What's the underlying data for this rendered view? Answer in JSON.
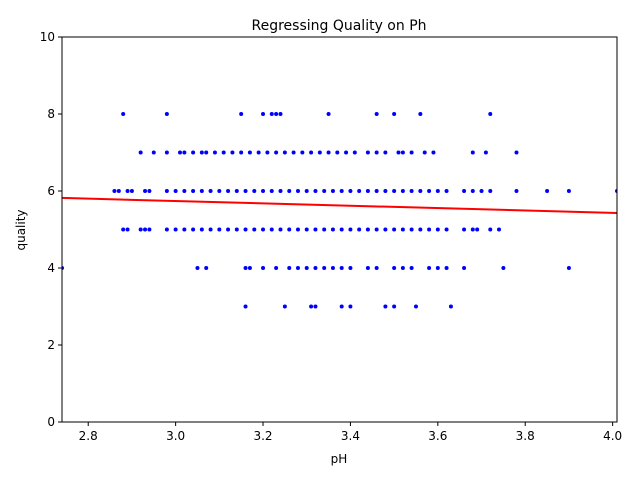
{
  "chart_data": {
    "type": "scatter",
    "title": "Regressing Quality on Ph",
    "xlabel": "pH",
    "ylabel": "quality",
    "xlim": [
      2.74,
      4.01
    ],
    "ylim": [
      0,
      10
    ],
    "xticks": [
      2.8,
      3.0,
      3.2,
      3.4,
      3.6,
      3.8,
      4.0
    ],
    "xtick_labels": [
      "2.8",
      "3.0",
      "3.2",
      "3.4",
      "3.6",
      "3.8",
      "4.0"
    ],
    "yticks": [
      0,
      2,
      4,
      6,
      8,
      10
    ],
    "ytick_labels": [
      "0",
      "2",
      "4",
      "6",
      "8",
      "10"
    ],
    "grid": false,
    "colors": {
      "points": "#0000ff",
      "regression_line": "#ff0000",
      "axes": "#000000"
    },
    "series": [
      {
        "type": "scatter",
        "points": [
          {
            "x": 2.74,
            "y": 4
          },
          {
            "x": 2.88,
            "y": 8
          },
          {
            "x": 2.98,
            "y": 8
          },
          {
            "x": 3.15,
            "y": 8
          },
          {
            "x": 3.2,
            "y": 8
          },
          {
            "x": 3.22,
            "y": 8
          },
          {
            "x": 3.23,
            "y": 8
          },
          {
            "x": 3.24,
            "y": 8
          },
          {
            "x": 3.35,
            "y": 8
          },
          {
            "x": 3.46,
            "y": 8
          },
          {
            "x": 3.5,
            "y": 8
          },
          {
            "x": 3.56,
            "y": 8
          },
          {
            "x": 3.72,
            "y": 8
          },
          {
            "x": 2.92,
            "y": 7
          },
          {
            "x": 2.95,
            "y": 7
          },
          {
            "x": 2.98,
            "y": 7
          },
          {
            "x": 3.01,
            "y": 7
          },
          {
            "x": 3.02,
            "y": 7
          },
          {
            "x": 3.04,
            "y": 7
          },
          {
            "x": 3.06,
            "y": 7
          },
          {
            "x": 3.07,
            "y": 7
          },
          {
            "x": 3.09,
            "y": 7
          },
          {
            "x": 3.11,
            "y": 7
          },
          {
            "x": 3.13,
            "y": 7
          },
          {
            "x": 3.15,
            "y": 7
          },
          {
            "x": 3.17,
            "y": 7
          },
          {
            "x": 3.19,
            "y": 7
          },
          {
            "x": 3.21,
            "y": 7
          },
          {
            "x": 3.23,
            "y": 7
          },
          {
            "x": 3.25,
            "y": 7
          },
          {
            "x": 3.27,
            "y": 7
          },
          {
            "x": 3.29,
            "y": 7
          },
          {
            "x": 3.31,
            "y": 7
          },
          {
            "x": 3.33,
            "y": 7
          },
          {
            "x": 3.35,
            "y": 7
          },
          {
            "x": 3.37,
            "y": 7
          },
          {
            "x": 3.39,
            "y": 7
          },
          {
            "x": 3.41,
            "y": 7
          },
          {
            "x": 3.44,
            "y": 7
          },
          {
            "x": 3.46,
            "y": 7
          },
          {
            "x": 3.48,
            "y": 7
          },
          {
            "x": 3.51,
            "y": 7
          },
          {
            "x": 3.52,
            "y": 7
          },
          {
            "x": 3.54,
            "y": 7
          },
          {
            "x": 3.57,
            "y": 7
          },
          {
            "x": 3.59,
            "y": 7
          },
          {
            "x": 3.68,
            "y": 7
          },
          {
            "x": 3.71,
            "y": 7
          },
          {
            "x": 3.78,
            "y": 7
          },
          {
            "x": 2.86,
            "y": 6
          },
          {
            "x": 2.87,
            "y": 6
          },
          {
            "x": 2.89,
            "y": 6
          },
          {
            "x": 2.9,
            "y": 6
          },
          {
            "x": 2.93,
            "y": 6
          },
          {
            "x": 2.94,
            "y": 6
          },
          {
            "x": 2.98,
            "y": 6
          },
          {
            "x": 3.0,
            "y": 6
          },
          {
            "x": 3.02,
            "y": 6
          },
          {
            "x": 3.04,
            "y": 6
          },
          {
            "x": 3.06,
            "y": 6
          },
          {
            "x": 3.08,
            "y": 6
          },
          {
            "x": 3.1,
            "y": 6
          },
          {
            "x": 3.12,
            "y": 6
          },
          {
            "x": 3.14,
            "y": 6
          },
          {
            "x": 3.16,
            "y": 6
          },
          {
            "x": 3.18,
            "y": 6
          },
          {
            "x": 3.2,
            "y": 6
          },
          {
            "x": 3.22,
            "y": 6
          },
          {
            "x": 3.24,
            "y": 6
          },
          {
            "x": 3.26,
            "y": 6
          },
          {
            "x": 3.28,
            "y": 6
          },
          {
            "x": 3.3,
            "y": 6
          },
          {
            "x": 3.32,
            "y": 6
          },
          {
            "x": 3.34,
            "y": 6
          },
          {
            "x": 3.36,
            "y": 6
          },
          {
            "x": 3.38,
            "y": 6
          },
          {
            "x": 3.4,
            "y": 6
          },
          {
            "x": 3.42,
            "y": 6
          },
          {
            "x": 3.44,
            "y": 6
          },
          {
            "x": 3.46,
            "y": 6
          },
          {
            "x": 3.48,
            "y": 6
          },
          {
            "x": 3.5,
            "y": 6
          },
          {
            "x": 3.52,
            "y": 6
          },
          {
            "x": 3.54,
            "y": 6
          },
          {
            "x": 3.56,
            "y": 6
          },
          {
            "x": 3.58,
            "y": 6
          },
          {
            "x": 3.6,
            "y": 6
          },
          {
            "x": 3.62,
            "y": 6
          },
          {
            "x": 3.66,
            "y": 6
          },
          {
            "x": 3.68,
            "y": 6
          },
          {
            "x": 3.7,
            "y": 6
          },
          {
            "x": 3.72,
            "y": 6
          },
          {
            "x": 3.78,
            "y": 6
          },
          {
            "x": 3.85,
            "y": 6
          },
          {
            "x": 3.9,
            "y": 6
          },
          {
            "x": 4.01,
            "y": 6
          },
          {
            "x": 2.88,
            "y": 5
          },
          {
            "x": 2.89,
            "y": 5
          },
          {
            "x": 2.92,
            "y": 5
          },
          {
            "x": 2.93,
            "y": 5
          },
          {
            "x": 2.94,
            "y": 5
          },
          {
            "x": 2.98,
            "y": 5
          },
          {
            "x": 3.0,
            "y": 5
          },
          {
            "x": 3.02,
            "y": 5
          },
          {
            "x": 3.04,
            "y": 5
          },
          {
            "x": 3.06,
            "y": 5
          },
          {
            "x": 3.08,
            "y": 5
          },
          {
            "x": 3.1,
            "y": 5
          },
          {
            "x": 3.12,
            "y": 5
          },
          {
            "x": 3.14,
            "y": 5
          },
          {
            "x": 3.16,
            "y": 5
          },
          {
            "x": 3.18,
            "y": 5
          },
          {
            "x": 3.2,
            "y": 5
          },
          {
            "x": 3.22,
            "y": 5
          },
          {
            "x": 3.24,
            "y": 5
          },
          {
            "x": 3.26,
            "y": 5
          },
          {
            "x": 3.28,
            "y": 5
          },
          {
            "x": 3.3,
            "y": 5
          },
          {
            "x": 3.32,
            "y": 5
          },
          {
            "x": 3.34,
            "y": 5
          },
          {
            "x": 3.36,
            "y": 5
          },
          {
            "x": 3.38,
            "y": 5
          },
          {
            "x": 3.4,
            "y": 5
          },
          {
            "x": 3.42,
            "y": 5
          },
          {
            "x": 3.44,
            "y": 5
          },
          {
            "x": 3.46,
            "y": 5
          },
          {
            "x": 3.48,
            "y": 5
          },
          {
            "x": 3.5,
            "y": 5
          },
          {
            "x": 3.52,
            "y": 5
          },
          {
            "x": 3.54,
            "y": 5
          },
          {
            "x": 3.56,
            "y": 5
          },
          {
            "x": 3.58,
            "y": 5
          },
          {
            "x": 3.6,
            "y": 5
          },
          {
            "x": 3.62,
            "y": 5
          },
          {
            "x": 3.66,
            "y": 5
          },
          {
            "x": 3.68,
            "y": 5
          },
          {
            "x": 3.69,
            "y": 5
          },
          {
            "x": 3.72,
            "y": 5
          },
          {
            "x": 3.74,
            "y": 5
          },
          {
            "x": 3.05,
            "y": 4
          },
          {
            "x": 3.07,
            "y": 4
          },
          {
            "x": 3.16,
            "y": 4
          },
          {
            "x": 3.17,
            "y": 4
          },
          {
            "x": 3.2,
            "y": 4
          },
          {
            "x": 3.23,
            "y": 4
          },
          {
            "x": 3.26,
            "y": 4
          },
          {
            "x": 3.28,
            "y": 4
          },
          {
            "x": 3.3,
            "y": 4
          },
          {
            "x": 3.32,
            "y": 4
          },
          {
            "x": 3.34,
            "y": 4
          },
          {
            "x": 3.36,
            "y": 4
          },
          {
            "x": 3.38,
            "y": 4
          },
          {
            "x": 3.4,
            "y": 4
          },
          {
            "x": 3.44,
            "y": 4
          },
          {
            "x": 3.46,
            "y": 4
          },
          {
            "x": 3.5,
            "y": 4
          },
          {
            "x": 3.52,
            "y": 4
          },
          {
            "x": 3.54,
            "y": 4
          },
          {
            "x": 3.58,
            "y": 4
          },
          {
            "x": 3.6,
            "y": 4
          },
          {
            "x": 3.62,
            "y": 4
          },
          {
            "x": 3.66,
            "y": 4
          },
          {
            "x": 3.75,
            "y": 4
          },
          {
            "x": 3.9,
            "y": 4
          },
          {
            "x": 3.16,
            "y": 3
          },
          {
            "x": 3.25,
            "y": 3
          },
          {
            "x": 3.31,
            "y": 3
          },
          {
            "x": 3.32,
            "y": 3
          },
          {
            "x": 3.38,
            "y": 3
          },
          {
            "x": 3.4,
            "y": 3
          },
          {
            "x": 3.48,
            "y": 3
          },
          {
            "x": 3.5,
            "y": 3
          },
          {
            "x": 3.55,
            "y": 3
          },
          {
            "x": 3.63,
            "y": 3
          }
        ]
      },
      {
        "type": "line",
        "x": [
          2.74,
          4.01
        ],
        "y": [
          5.82,
          5.43
        ]
      }
    ]
  }
}
